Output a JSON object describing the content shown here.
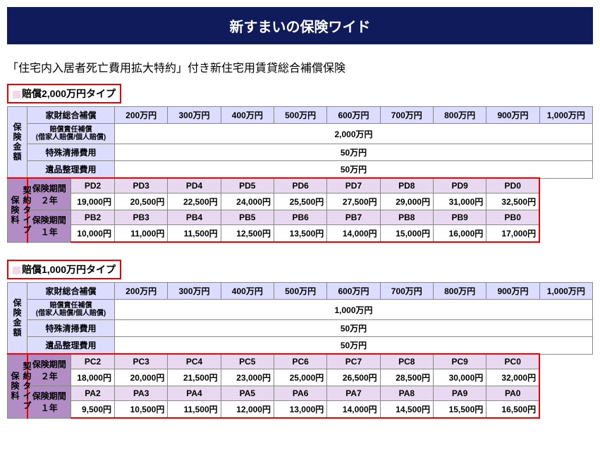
{
  "header": {
    "title": "新すまいの保険ワイド"
  },
  "subtitle": "「住宅内入居者死亡費用拡大特約」付き新住宅用賃貸総合補償保険",
  "col_headers": [
    "200万円",
    "300万円",
    "400万円",
    "500万円",
    "600万円",
    "700万円",
    "800万円",
    "900万円",
    "1,000万円"
  ],
  "row_labels": {
    "side1": "保険金額",
    "side2_a": "契約タイプ",
    "side2_b": "保険料",
    "kazai": "家財総合補償",
    "baisho": "賠償責任補償",
    "baisho_sub": "(借家人賠償/個人賠償)",
    "tokushu": "特殊清掃費用",
    "ihin": "遺品整理費用",
    "period2": "保険期間\n２年",
    "period1": "保険期間\n１年"
  },
  "tables": [
    {
      "type_label": "賠償2,000万円タイプ",
      "baisho_value": "2,000万円",
      "tokushu_value": "50万円",
      "ihin_value": "50万円",
      "period2_codes": [
        "PD2",
        "PD3",
        "PD4",
        "PD5",
        "PD6",
        "PD7",
        "PD8",
        "PD9",
        "PD0"
      ],
      "period2_prices": [
        "19,000円",
        "20,500円",
        "22,500円",
        "24,000円",
        "25,500円",
        "27,500円",
        "29,000円",
        "31,000円",
        "32,500円"
      ],
      "period1_codes": [
        "PB2",
        "PB3",
        "PB4",
        "PB5",
        "PB6",
        "PB7",
        "PB8",
        "PB9",
        "PB0"
      ],
      "period1_prices": [
        "10,000円",
        "11,000円",
        "11,500円",
        "12,500円",
        "13,500円",
        "14,000円",
        "15,000円",
        "16,000円",
        "17,000円"
      ]
    },
    {
      "type_label": "賠償1,000万円タイプ",
      "baisho_value": "1,000万円",
      "tokushu_value": "50万円",
      "ihin_value": "50万円",
      "period2_codes": [
        "PC2",
        "PC3",
        "PC4",
        "PC5",
        "PC6",
        "PC7",
        "PC8",
        "PC9",
        "PC0"
      ],
      "period2_prices": [
        "18,000円",
        "20,000円",
        "21,500円",
        "23,000円",
        "25,000円",
        "26,500円",
        "28,500円",
        "30,000円",
        "32,000円"
      ],
      "period1_codes": [
        "PA2",
        "PA3",
        "PA4",
        "PA5",
        "PA6",
        "PA7",
        "PA8",
        "PA9",
        "PA0"
      ],
      "period1_prices": [
        "9,500円",
        "10,500円",
        "11,500円",
        "12,000円",
        "13,000円",
        "14,000円",
        "14,500円",
        "15,500円",
        "16,500円"
      ]
    }
  ]
}
